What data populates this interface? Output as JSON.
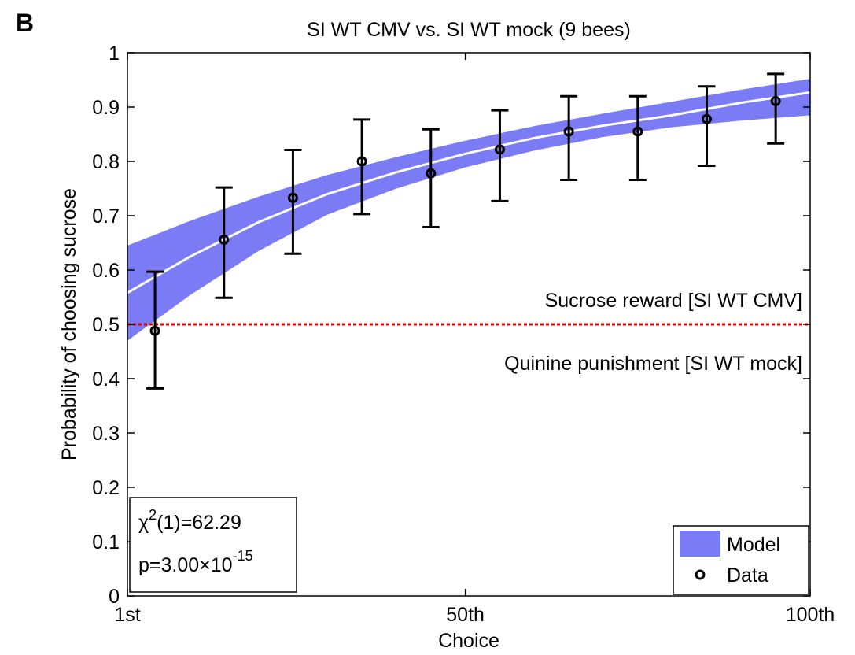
{
  "chart_data": {
    "type": "line",
    "panel_label": "B",
    "title": "SI WT CMV vs. SI WT mock (9 bees)",
    "x_label": "Choice",
    "y_label": "Probability of choosing sucrose",
    "xlim": [
      1,
      100
    ],
    "xticks": [
      {
        "value": 1,
        "label": "1st"
      },
      {
        "value": 50,
        "label": "50th"
      },
      {
        "value": 100,
        "label": "100th"
      }
    ],
    "ylim": [
      0,
      1
    ],
    "yticks": [
      0,
      0.1,
      0.2,
      0.3,
      0.4,
      0.5,
      0.6,
      0.7,
      0.8,
      0.9,
      1
    ],
    "model": {
      "name": "Model",
      "color": "#7b7bf5",
      "line_color": "#ffffff",
      "x": [
        1,
        10,
        20,
        30,
        40,
        50,
        60,
        70,
        80,
        90,
        100
      ],
      "mean": [
        0.558,
        0.624,
        0.688,
        0.74,
        0.78,
        0.814,
        0.843,
        0.866,
        0.885,
        0.908,
        0.927
      ],
      "lower": [
        0.47,
        0.553,
        0.635,
        0.702,
        0.75,
        0.789,
        0.82,
        0.845,
        0.863,
        0.875,
        0.885
      ],
      "upper": [
        0.645,
        0.69,
        0.735,
        0.775,
        0.808,
        0.838,
        0.865,
        0.888,
        0.91,
        0.932,
        0.952
      ]
    },
    "data": {
      "name": "Data",
      "color": "#000000",
      "x": [
        5,
        15,
        25,
        35,
        45,
        55,
        65,
        75,
        85,
        95
      ],
      "values": [
        0.488,
        0.656,
        0.733,
        0.8,
        0.778,
        0.822,
        0.855,
        0.855,
        0.878,
        0.911
      ],
      "lower": [
        0.382,
        0.549,
        0.63,
        0.703,
        0.679,
        0.727,
        0.766,
        0.766,
        0.792,
        0.833
      ],
      "upper": [
        0.597,
        0.752,
        0.821,
        0.877,
        0.859,
        0.894,
        0.92,
        0.92,
        0.938,
        0.961
      ]
    },
    "reference": {
      "value": 0.5,
      "color": "#e00000",
      "above_label": "Sucrose reward [SI WT CMV]",
      "below_label": "Quinine punishment [SI WT mock]"
    },
    "stats": {
      "line1": [
        "χ",
        "2",
        "(1)=62.29"
      ],
      "line2": [
        "p=3.00×10",
        "-15"
      ]
    },
    "legend_position": "lower right"
  }
}
